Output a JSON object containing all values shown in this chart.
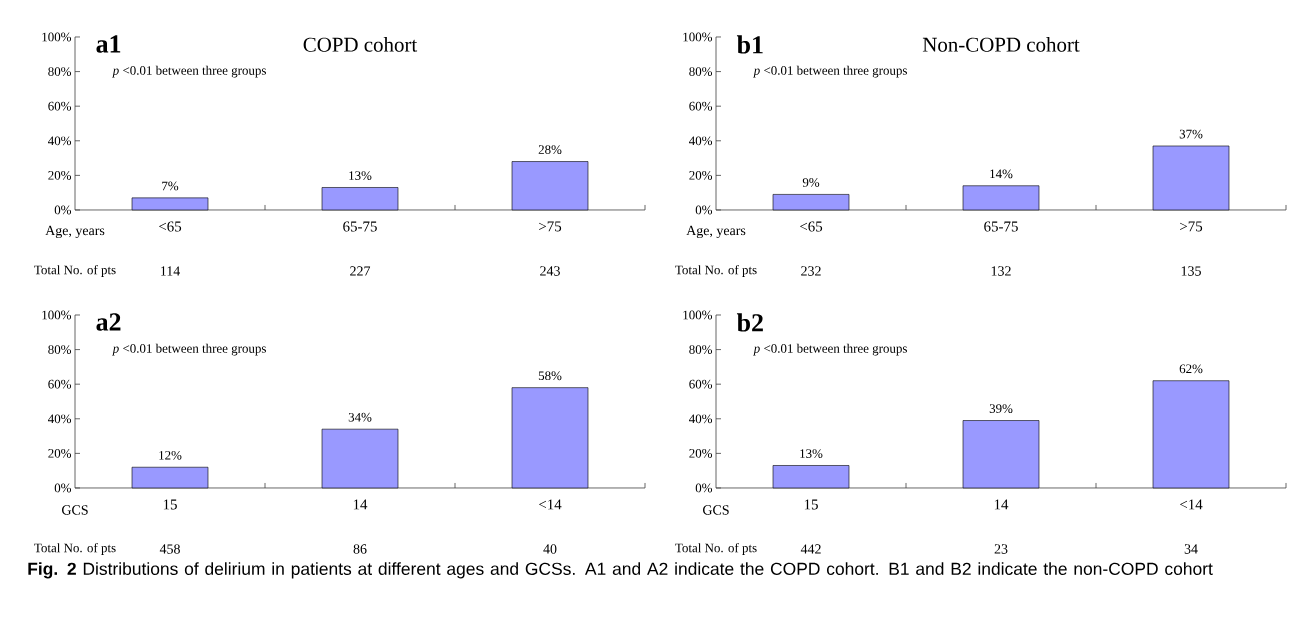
{
  "chart_data": [
    {
      "type": "bar",
      "title": "a1",
      "subtitle": "COPD cohort",
      "xlabel": "Age, years",
      "categories": [
        "<65",
        "65-75",
        ">75"
      ],
      "values": [
        7,
        13,
        28
      ],
      "value_labels": [
        "7%",
        "13%",
        "28%"
      ],
      "color": "#9999ff",
      "ylim": [
        0,
        100
      ],
      "yticks": [
        {
          "value": 0,
          "label": "0%"
        },
        {
          "value": 20,
          "label": "20%"
        },
        {
          "value": 40,
          "label": "40%"
        },
        {
          "value": 60,
          "label": "60%"
        },
        {
          "value": 80,
          "label": "80%"
        },
        {
          "value": 100,
          "label": "100%"
        }
      ],
      "annotations": [
        "*p* <0.01 between three groups",
        "Total No. of pts",
        "114",
        "227",
        "243",
        "**Fig. 2** Distributions of delirium in patients at different ages and GCSs. A1 and A2 indicate the COPD cohort. B1 and B2 indicate the non-COPD cohort"
      ]
    },
    {
      "type": "bar",
      "title": "b1",
      "subtitle": "Non-COPD cohort",
      "xlabel": "Age, years",
      "categories": [
        "<65",
        "65-75",
        ">75"
      ],
      "values": [
        9,
        14,
        37
      ],
      "value_labels": [
        "9%",
        "14%",
        "37%"
      ],
      "color": "#9999ff",
      "ylim": [
        0,
        100
      ],
      "yticks": [
        {
          "value": 0,
          "label": "0%"
        },
        {
          "value": 20,
          "label": "20%"
        },
        {
          "value": 40,
          "label": "40%"
        },
        {
          "value": 60,
          "label": "60%"
        },
        {
          "value": 80,
          "label": "80%"
        },
        {
          "value": 100,
          "label": "100%"
        }
      ],
      "annotations": [
        "*p* <0.01 between three groups",
        "Total No. of pts",
        "232",
        "132",
        "135"
      ]
    },
    {
      "type": "bar",
      "title": "a2",
      "xlabel": "GCS",
      "categories": [
        "15",
        "14",
        "<14"
      ],
      "values": [
        12,
        34,
        58
      ],
      "value_labels": [
        "12%",
        "34%",
        "58%"
      ],
      "color": "#9999ff",
      "ylim": [
        0,
        100
      ],
      "yticks": [
        {
          "value": 0,
          "label": "0%"
        },
        {
          "value": 20,
          "label": "20%"
        },
        {
          "value": 40,
          "label": "40%"
        },
        {
          "value": 60,
          "label": "60%"
        },
        {
          "value": 80,
          "label": "80%"
        },
        {
          "value": 100,
          "label": "100%"
        }
      ],
      "annotations": [
        "*p* <0.01 between three groups",
        "Total No. of pts",
        "458",
        "86",
        "40"
      ]
    },
    {
      "type": "bar",
      "title": "b2",
      "xlabel": "GCS",
      "categories": [
        "15",
        "14",
        "<14"
      ],
      "values": [
        13,
        39,
        62
      ],
      "value_labels": [
        "13%",
        "39%",
        "62%"
      ],
      "color": "#9999ff",
      "ylim": [
        0,
        100
      ],
      "yticks": [
        {
          "value": 0,
          "label": "0%"
        },
        {
          "value": 20,
          "label": "20%"
        },
        {
          "value": 40,
          "label": "40%"
        },
        {
          "value": 60,
          "label": "60%"
        },
        {
          "value": 80,
          "label": "80%"
        },
        {
          "value": 100,
          "label": "100%"
        }
      ],
      "annotations": [
        "*p* <0.01 between three groups",
        "Total No. of pts",
        "442",
        "23",
        "34"
      ]
    }
  ]
}
